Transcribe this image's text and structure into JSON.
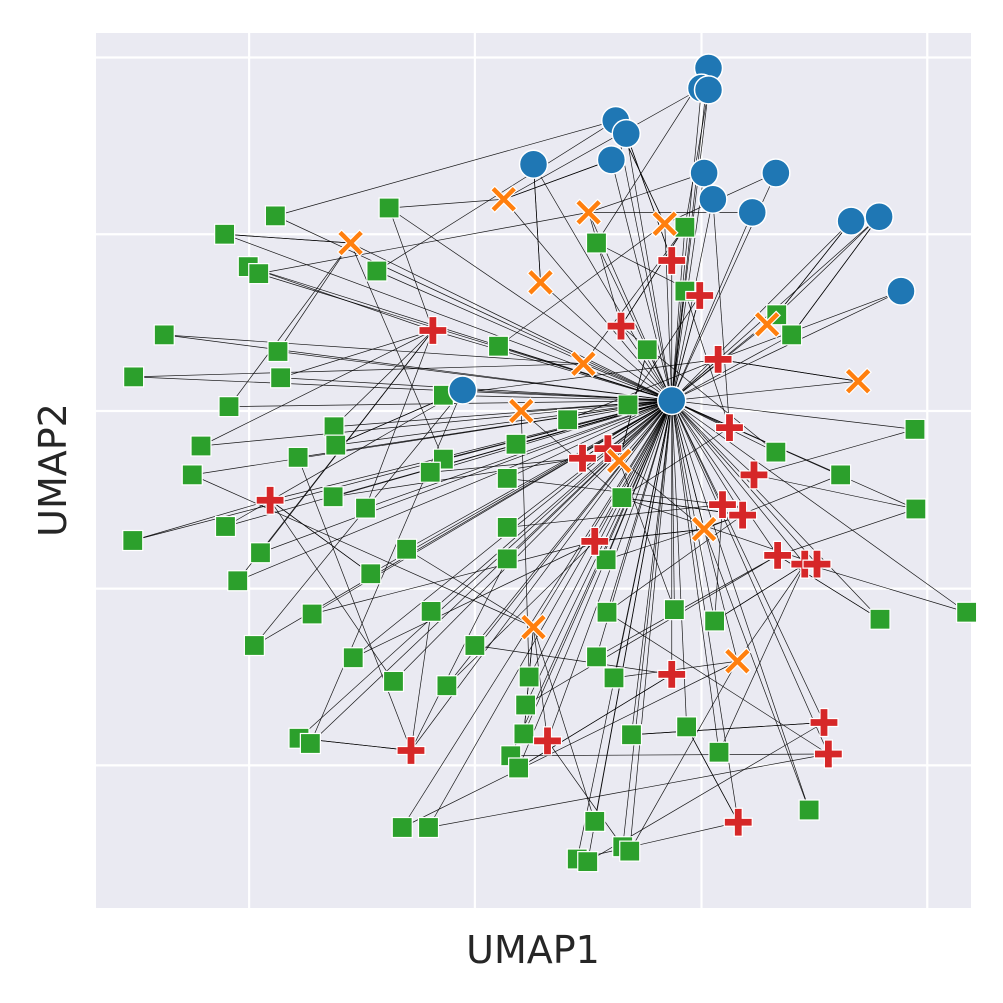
{
  "chart_data": {
    "type": "scatter",
    "title": "",
    "xlabel": "UMAP1",
    "ylabel": "UMAP2",
    "xlim": [
      0,
      10
    ],
    "ylim": [
      0,
      10
    ],
    "grid": true,
    "xticks": [
      1.75,
      4.33,
      6.92,
      9.5
    ],
    "yticks": [
      1.63,
      3.65,
      5.68,
      7.7,
      9.72
    ],
    "tick_labels_visible": false,
    "legend": "none",
    "colors": {
      "background": "#eaeaf2",
      "grid": "#ffffff",
      "edge": "#000000",
      "circle": "#1f77b4",
      "x_marker": "#ff7f0e",
      "plus": "#d62728",
      "square": "#2ca02c"
    },
    "hub": [
      6.58,
      5.8
    ],
    "series": [
      {
        "marker": "circle",
        "color": "#1f77b4",
        "points": [
          [
            7.0,
            9.6
          ],
          [
            6.92,
            9.37
          ],
          [
            7.0,
            9.35
          ],
          [
            5.94,
            9.0
          ],
          [
            6.06,
            8.85
          ],
          [
            5.0,
            8.5
          ],
          [
            5.89,
            8.55
          ],
          [
            6.95,
            8.4
          ],
          [
            7.77,
            8.4
          ],
          [
            7.05,
            8.1
          ],
          [
            8.63,
            7.85
          ],
          [
            8.95,
            7.9
          ],
          [
            7.5,
            7.95
          ],
          [
            9.2,
            7.05
          ],
          [
            4.19,
            5.92
          ],
          [
            6.58,
            5.8
          ]
        ]
      },
      {
        "marker": "x",
        "color": "#ff7f0e",
        "points": [
          [
            4.66,
            8.1
          ],
          [
            5.63,
            7.95
          ],
          [
            6.5,
            7.82
          ],
          [
            2.91,
            7.6
          ],
          [
            5.08,
            7.15
          ],
          [
            7.67,
            6.67
          ],
          [
            5.57,
            6.22
          ],
          [
            8.71,
            6.02
          ],
          [
            4.86,
            5.68
          ],
          [
            5.98,
            5.11
          ],
          [
            6.95,
            4.33
          ],
          [
            5.0,
            3.21
          ],
          [
            7.33,
            2.82
          ]
        ]
      },
      {
        "marker": "plus",
        "color": "#d62728",
        "points": [
          [
            6.58,
            7.4
          ],
          [
            6.9,
            7.0
          ],
          [
            3.85,
            6.6
          ],
          [
            6.0,
            6.65
          ],
          [
            7.11,
            6.27
          ],
          [
            7.24,
            5.49
          ],
          [
            5.56,
            5.14
          ],
          [
            5.85,
            5.25
          ],
          [
            7.52,
            4.95
          ],
          [
            7.16,
            4.61
          ],
          [
            7.39,
            4.49
          ],
          [
            1.99,
            4.66
          ],
          [
            5.7,
            4.19
          ],
          [
            7.79,
            4.03
          ],
          [
            8.1,
            3.93
          ],
          [
            8.24,
            3.93
          ],
          [
            6.58,
            2.67
          ],
          [
            8.32,
            2.12
          ],
          [
            5.16,
            1.91
          ],
          [
            3.6,
            1.8
          ],
          [
            8.37,
            1.76
          ],
          [
            7.34,
            0.98
          ]
        ]
      },
      {
        "marker": "square",
        "color": "#2ca02c",
        "points": [
          [
            3.35,
            8.0
          ],
          [
            6.73,
            7.78
          ],
          [
            2.05,
            7.91
          ],
          [
            1.47,
            7.7
          ],
          [
            5.72,
            7.6
          ],
          [
            1.74,
            7.33
          ],
          [
            1.86,
            7.25
          ],
          [
            3.21,
            7.28
          ],
          [
            6.73,
            7.05
          ],
          [
            7.78,
            6.78
          ],
          [
            7.95,
            6.55
          ],
          [
            0.78,
            6.55
          ],
          [
            4.6,
            6.42
          ],
          [
            2.08,
            6.36
          ],
          [
            6.3,
            6.38
          ],
          [
            2.11,
            6.06
          ],
          [
            0.43,
            6.07
          ],
          [
            3.97,
            5.86
          ],
          [
            1.52,
            5.73
          ],
          [
            6.08,
            5.75
          ],
          [
            2.72,
            5.5
          ],
          [
            9.36,
            5.47
          ],
          [
            5.39,
            5.58
          ],
          [
            2.74,
            5.29
          ],
          [
            4.8,
            5.3
          ],
          [
            1.2,
            5.28
          ],
          [
            7.77,
            5.21
          ],
          [
            2.31,
            5.15
          ],
          [
            3.97,
            5.13
          ],
          [
            3.82,
            4.98
          ],
          [
            8.51,
            4.95
          ],
          [
            1.1,
            4.95
          ],
          [
            4.7,
            4.91
          ],
          [
            6.01,
            4.69
          ],
          [
            2.71,
            4.7
          ],
          [
            3.08,
            4.57
          ],
          [
            9.37,
            4.56
          ],
          [
            4.7,
            4.35
          ],
          [
            1.48,
            4.36
          ],
          [
            0.42,
            4.2
          ],
          [
            1.88,
            4.06
          ],
          [
            3.55,
            4.1
          ],
          [
            4.7,
            3.99
          ],
          [
            5.83,
            3.98
          ],
          [
            3.14,
            3.82
          ],
          [
            1.62,
            3.74
          ],
          [
            9.95,
            3.38
          ],
          [
            3.83,
            3.39
          ],
          [
            5.84,
            3.38
          ],
          [
            6.61,
            3.41
          ],
          [
            2.47,
            3.36
          ],
          [
            8.96,
            3.3
          ],
          [
            7.07,
            3.28
          ],
          [
            1.81,
            3.0
          ],
          [
            4.33,
            3.0
          ],
          [
            2.94,
            2.86
          ],
          [
            5.72,
            2.87
          ],
          [
            5.92,
            2.63
          ],
          [
            4.95,
            2.64
          ],
          [
            3.4,
            2.59
          ],
          [
            4.01,
            2.54
          ],
          [
            4.91,
            2.32
          ],
          [
            2.32,
            1.94
          ],
          [
            2.45,
            1.88
          ],
          [
            6.75,
            2.07
          ],
          [
            6.12,
            1.98
          ],
          [
            4.89,
            1.99
          ],
          [
            7.12,
            1.78
          ],
          [
            4.74,
            1.74
          ],
          [
            4.83,
            1.6
          ],
          [
            8.15,
            1.12
          ],
          [
            5.7,
            0.99
          ],
          [
            3.5,
            0.92
          ],
          [
            3.8,
            0.92
          ],
          [
            5.5,
            0.56
          ],
          [
            5.62,
            0.53
          ],
          [
            6.02,
            0.7
          ],
          [
            6.1,
            0.65
          ]
        ]
      }
    ]
  }
}
